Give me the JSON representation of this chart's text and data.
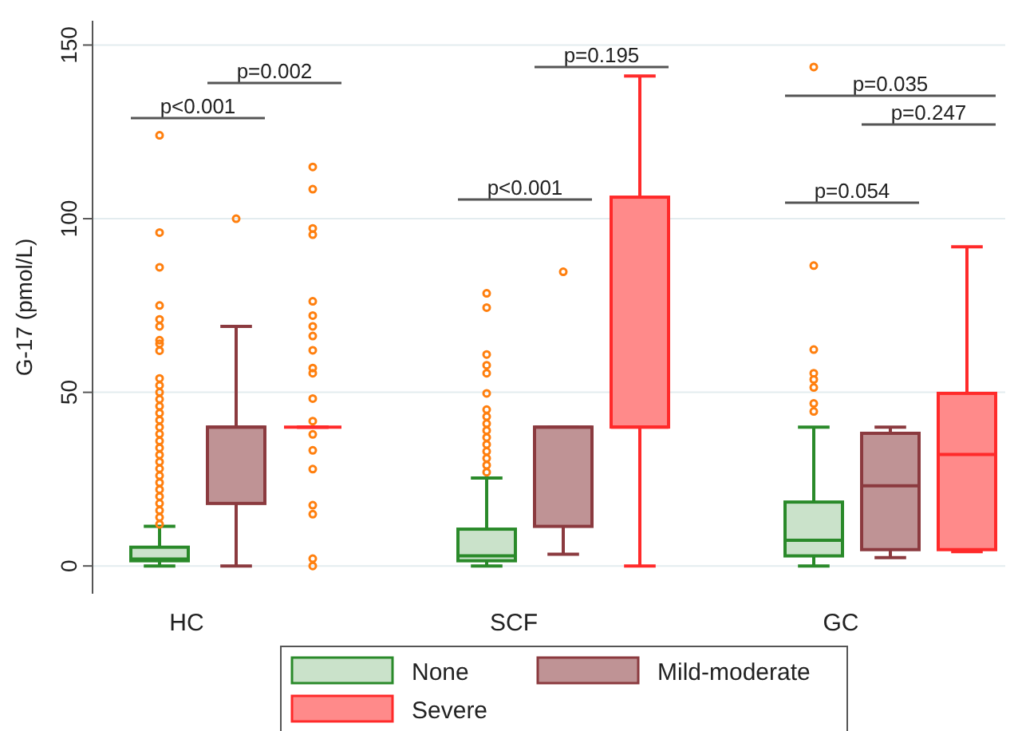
{
  "chart_data": {
    "type": "box",
    "ylabel": "G-17 (pmol/L)",
    "categories": [
      "HC",
      "SCF",
      "GC"
    ],
    "ylim": [
      -8,
      157
    ],
    "yticks": [
      0,
      50,
      100,
      150
    ],
    "grid": "y",
    "legend": "bottom",
    "annotations": [
      "p<0.001",
      "p=0.002",
      "p<0.001",
      "p=0.195",
      "p=0.054",
      "p=0.035",
      "p=0.247"
    ],
    "series": [
      {
        "name": "None",
        "color": "#2a8a2a",
        "boxes": [
          {
            "low": 0,
            "q1": 1.5,
            "median": 2,
            "q3": 5.4,
            "high": 11.4,
            "outliers": [
              12,
              14,
              16,
              18,
              20,
              22,
              24,
              26,
              28,
              30,
              32,
              34,
              36,
              38,
              40,
              42,
              44,
              46,
              48,
              50,
              52,
              54,
              62,
              64,
              65,
              69,
              71,
              75,
              86,
              96,
              124
            ]
          },
          {
            "low": 0,
            "q1": 1.5,
            "median": 2.9,
            "q3": 10.6,
            "high": 25.3,
            "outliers": [
              27,
              29,
              31,
              33,
              35,
              37,
              39,
              41,
              43,
              45,
              49.7,
              55.5,
              57.8,
              60.9,
              74.4,
              78.5
            ]
          },
          {
            "low": 0,
            "q1": 2.9,
            "median": 7.4,
            "q3": 18.4,
            "high": 40,
            "outliers": [
              44.5,
              46.8,
              51.4,
              53.7,
              55.5,
              62.3,
              86.5,
              143.7
            ]
          }
        ]
      },
      {
        "name": "Mild-moderate",
        "color": "#8b3a3f",
        "boxes": [
          {
            "low": 0,
            "q1": 18,
            "median": 40,
            "q3": 40,
            "high": 69,
            "outliers": [
              100
            ]
          },
          {
            "low": 3.4,
            "q1": 11.4,
            "median": 40,
            "q3": 40,
            "high": 40,
            "outliers": [
              84.7
            ]
          },
          {
            "low": 2.4,
            "q1": 4.7,
            "median": 23.1,
            "q3": 38.2,
            "high": 40
          }
        ]
      },
      {
        "name": "Severe",
        "color": "#ff2a2a",
        "boxes": [
          {
            "low": 40,
            "q1": 40,
            "median": 40,
            "q3": 40,
            "high": 40,
            "outliers": [
              0,
              2.1,
              14.9,
              17.5,
              27.9,
              33.3,
              37.9,
              41.7,
              48.2,
              55.5,
              57,
              62.1,
              66.2,
              69,
              72.1,
              76.2,
              95.4,
              97.2,
              108.5,
              114.9
            ]
          },
          {
            "low": 0,
            "q1": 40,
            "median": 40,
            "q3": 106.2,
            "high": 141.1
          },
          {
            "low": 4.1,
            "q1": 4.7,
            "median": 32.1,
            "q3": 49.7,
            "high": 91.9
          }
        ]
      }
    ]
  }
}
